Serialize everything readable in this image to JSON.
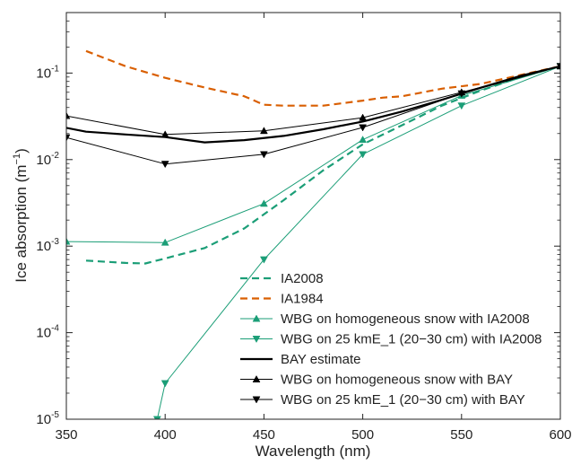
{
  "chart_data": {
    "type": "line",
    "xlabel": "Wavelength (nm)",
    "ylabel_main": "Ice absorption (m",
    "ylabel_sup": "−1",
    "ylabel_close": ")",
    "xlim": [
      350,
      600
    ],
    "ylim": [
      1e-05,
      0.5
    ],
    "yscale": "log",
    "grid": false,
    "legend_position": "lower-right",
    "x_ticks": [
      {
        "value": 350,
        "label": "350"
      },
      {
        "value": 400,
        "label": "400"
      },
      {
        "value": 450,
        "label": "450"
      },
      {
        "value": 500,
        "label": "500"
      },
      {
        "value": 550,
        "label": "550"
      },
      {
        "value": 600,
        "label": "600"
      }
    ],
    "y_ticks": [
      {
        "value": 1e-05,
        "base": "10",
        "exp": "-5"
      },
      {
        "value": 0.0001,
        "base": "10",
        "exp": "-4"
      },
      {
        "value": 0.001,
        "base": "10",
        "exp": "-3"
      },
      {
        "value": 0.01,
        "base": "10",
        "exp": "-2"
      },
      {
        "value": 0.1,
        "base": "10",
        "exp": "-1"
      }
    ],
    "series": [
      {
        "name": "IA2008",
        "color": "#1b9e77",
        "style": "dashed",
        "width": 2.2,
        "marker": "none",
        "x": [
          360,
          380,
          390,
          400,
          420,
          440,
          460,
          480,
          500,
          520,
          540,
          560,
          580,
          600
        ],
        "y": [
          0.00068,
          0.00064,
          0.00063,
          0.00072,
          0.00095,
          0.0016,
          0.0034,
          0.0075,
          0.015,
          0.025,
          0.042,
          0.063,
          0.09,
          0.12
        ]
      },
      {
        "name": "IA1984",
        "color": "#d95f02",
        "style": "dashed",
        "width": 2.2,
        "marker": "none",
        "x": [
          360,
          380,
          400,
          420,
          440,
          450,
          460,
          480,
          500,
          510,
          520,
          540,
          560,
          580,
          600
        ],
        "y": [
          0.18,
          0.12,
          0.088,
          0.068,
          0.054,
          0.043,
          0.042,
          0.042,
          0.048,
          0.052,
          0.054,
          0.066,
          0.075,
          0.095,
          0.12
        ]
      },
      {
        "name": "WBG on homogeneous snow with IA2008",
        "color": "#1b9e77",
        "style": "solid",
        "width": 1,
        "marker": "triangle-up",
        "x": [
          350,
          400,
          450,
          500,
          550,
          600
        ],
        "y": [
          0.00113,
          0.0011,
          0.0031,
          0.017,
          0.055,
          0.12
        ]
      },
      {
        "name": "WBG on 25  kmE_1 (20−30 cm) with IA2008",
        "color": "#1b9e77",
        "style": "solid",
        "width": 1,
        "marker": "triangle-down",
        "x": [
          396,
          400,
          450,
          500,
          550,
          600
        ],
        "y": [
          1e-05,
          2.6e-05,
          0.0007,
          0.0115,
          0.042,
          0.12
        ]
      },
      {
        "name": "BAY estimate",
        "color": "#000000",
        "style": "solid",
        "width": 2.2,
        "marker": "none",
        "x": [
          350,
          360,
          380,
          400,
          420,
          440,
          460,
          480,
          500,
          520,
          540,
          560,
          580,
          600
        ],
        "y": [
          0.0233,
          0.021,
          0.0195,
          0.0182,
          0.0158,
          0.0168,
          0.0188,
          0.0224,
          0.0275,
          0.036,
          0.049,
          0.068,
          0.093,
          0.12
        ]
      },
      {
        "name": "WBG on homogeneous snow with BAY",
        "color": "#000000",
        "style": "solid",
        "width": 1,
        "marker": "triangle-up",
        "x": [
          350,
          400,
          450,
          500,
          550,
          600
        ],
        "y": [
          0.032,
          0.0195,
          0.0215,
          0.0305,
          0.06,
          0.12
        ]
      },
      {
        "name": "WBG on 25  kmE_1 (20−30 cm) with BAY",
        "color": "#000000",
        "style": "solid",
        "width": 1,
        "marker": "triangle-down",
        "x": [
          350,
          400,
          450,
          500,
          550,
          600
        ],
        "y": [
          0.018,
          0.0089,
          0.0115,
          0.0235,
          0.058,
          0.12
        ]
      }
    ]
  }
}
